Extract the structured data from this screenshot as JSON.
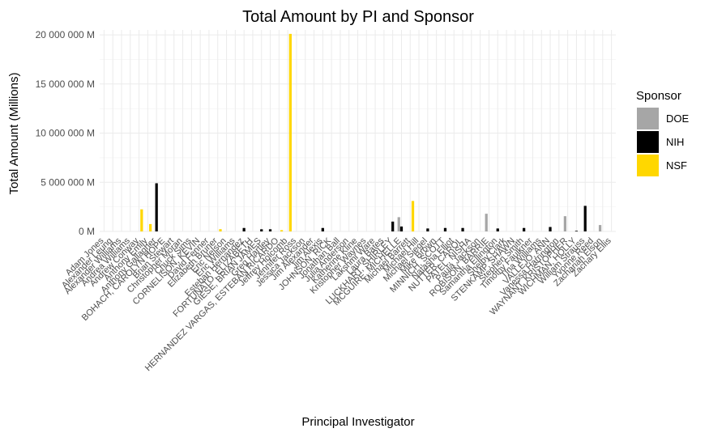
{
  "chart_data": {
    "type": "bar",
    "title": "Total Amount by PI and Sponsor",
    "xlabel": "Principal Investigator",
    "ylabel": "Total Amount (Millions)",
    "ylim": [
      0,
      20500000
    ],
    "y_ticks": [
      0,
      5000000,
      10000000,
      15000000,
      20000000
    ],
    "y_tick_labels": [
      "0 M",
      "5 000 000 M",
      "10 000 000 M",
      "15 000 000 M",
      "20 000 000 M"
    ],
    "grid": true,
    "legend": {
      "title": "Sponsor",
      "position": "right"
    },
    "colors": {
      "DOE": "#a6a6a6",
      "NIH": "#000000",
      "NSF": "#ffd700"
    },
    "categories": [
      "Adam Jones",
      "Alexander Leung",
      "Alexander Williams",
      "Andrea Williams",
      "Andrew Conway",
      "Anthony Emily",
      "Anthony Gallagher",
      "BOHACH, CAROLYN HOPE",
      "Brian Stewart",
      "Christopher Moran",
      "Chuck Sims",
      "CORNELISON, KEVIN",
      "David Fenner",
      "Elizabeth Bruner",
      "Eric Nelson",
      "Eric Williams",
      "Esteban Hernandez",
      "FORTUNATO, ELIZABETH",
      "GIESE, BRIAN JAMES",
      "Greg Hartley",
      "HERNANDEZ VARGAS, ESTEBAN RICARDO",
      "Jeffrey Holcomb",
      "Jennifer Ross",
      "Jessica Jackson",
      "Jim Alexander",
      "Jim Alexis",
      "JOHNSON, RICK",
      "Jonathan Ball",
      "Julia Anderson",
      "Katherine Kline",
      "Kristopher Waynes",
      "Lakshmi Ware",
      "Laura Bates",
      "LUCKHART, SHIRLEY",
      "MCGUIRE, MICHELLE",
      "Michael Barrett",
      "Michael Hill",
      "Michael Siegel",
      "Mike Brown",
      "MINNICH, SCOTT",
      "Natasha Elliot",
      "NUTTER, CAROL",
      "PATEL, NISHA",
      "Paula Jackson",
      "ROBISON, BARRIE",
      "Samantha Ellington",
      "Shelby Clark",
      "STENKAMP, SHAWN",
      "Stephen Smith",
      "Timothy Faulkner",
      "Tina Williams",
      "VALLEJO, ANN",
      "Vanessa Harrington",
      "WAYNANT, KRISTOPHER",
      "WICHMAN, HOLLY",
      "William Strauss",
      "Yvonne Reed",
      "Zachariah Elson",
      "Zachary Ellis"
    ],
    "series": [
      {
        "name": "DOE",
        "values": [
          0,
          0,
          0,
          0,
          0,
          0,
          0,
          0,
          0,
          0,
          0,
          0,
          0,
          0,
          0,
          0,
          0,
          0,
          0,
          0,
          0,
          0,
          0,
          0,
          0,
          0,
          0,
          0,
          0,
          0,
          0,
          0,
          0,
          0,
          1450000,
          0,
          0,
          0,
          0,
          0,
          0,
          0,
          0,
          0,
          1800000,
          0,
          0,
          0,
          0,
          0,
          0,
          0,
          0,
          1550000,
          0,
          0,
          0,
          650000,
          0
        ]
      },
      {
        "name": "NIH",
        "values": [
          0,
          0,
          0,
          0,
          0,
          0,
          4900000,
          0,
          0,
          0,
          0,
          0,
          0,
          0,
          0,
          0,
          350000,
          0,
          220000,
          220000,
          0,
          0,
          0,
          0,
          0,
          350000,
          0,
          0,
          0,
          0,
          0,
          0,
          0,
          1000000,
          500000,
          0,
          0,
          300000,
          0,
          350000,
          0,
          350000,
          0,
          0,
          0,
          300000,
          0,
          0,
          350000,
          0,
          0,
          450000,
          0,
          0,
          60000,
          2600000,
          0,
          0,
          0
        ]
      },
      {
        "name": "NSF",
        "values": [
          0,
          0,
          0,
          0,
          2250000,
          750000,
          0,
          0,
          0,
          0,
          0,
          0,
          0,
          230000,
          0,
          0,
          0,
          0,
          0,
          0,
          130000,
          20100000,
          0,
          0,
          0,
          0,
          0,
          0,
          0,
          0,
          0,
          0,
          0,
          0,
          0,
          3100000,
          0,
          0,
          0,
          0,
          0,
          0,
          0,
          0,
          0,
          0,
          0,
          0,
          0,
          0,
          0,
          0,
          0,
          0,
          0,
          0,
          0,
          0,
          0
        ]
      }
    ]
  }
}
